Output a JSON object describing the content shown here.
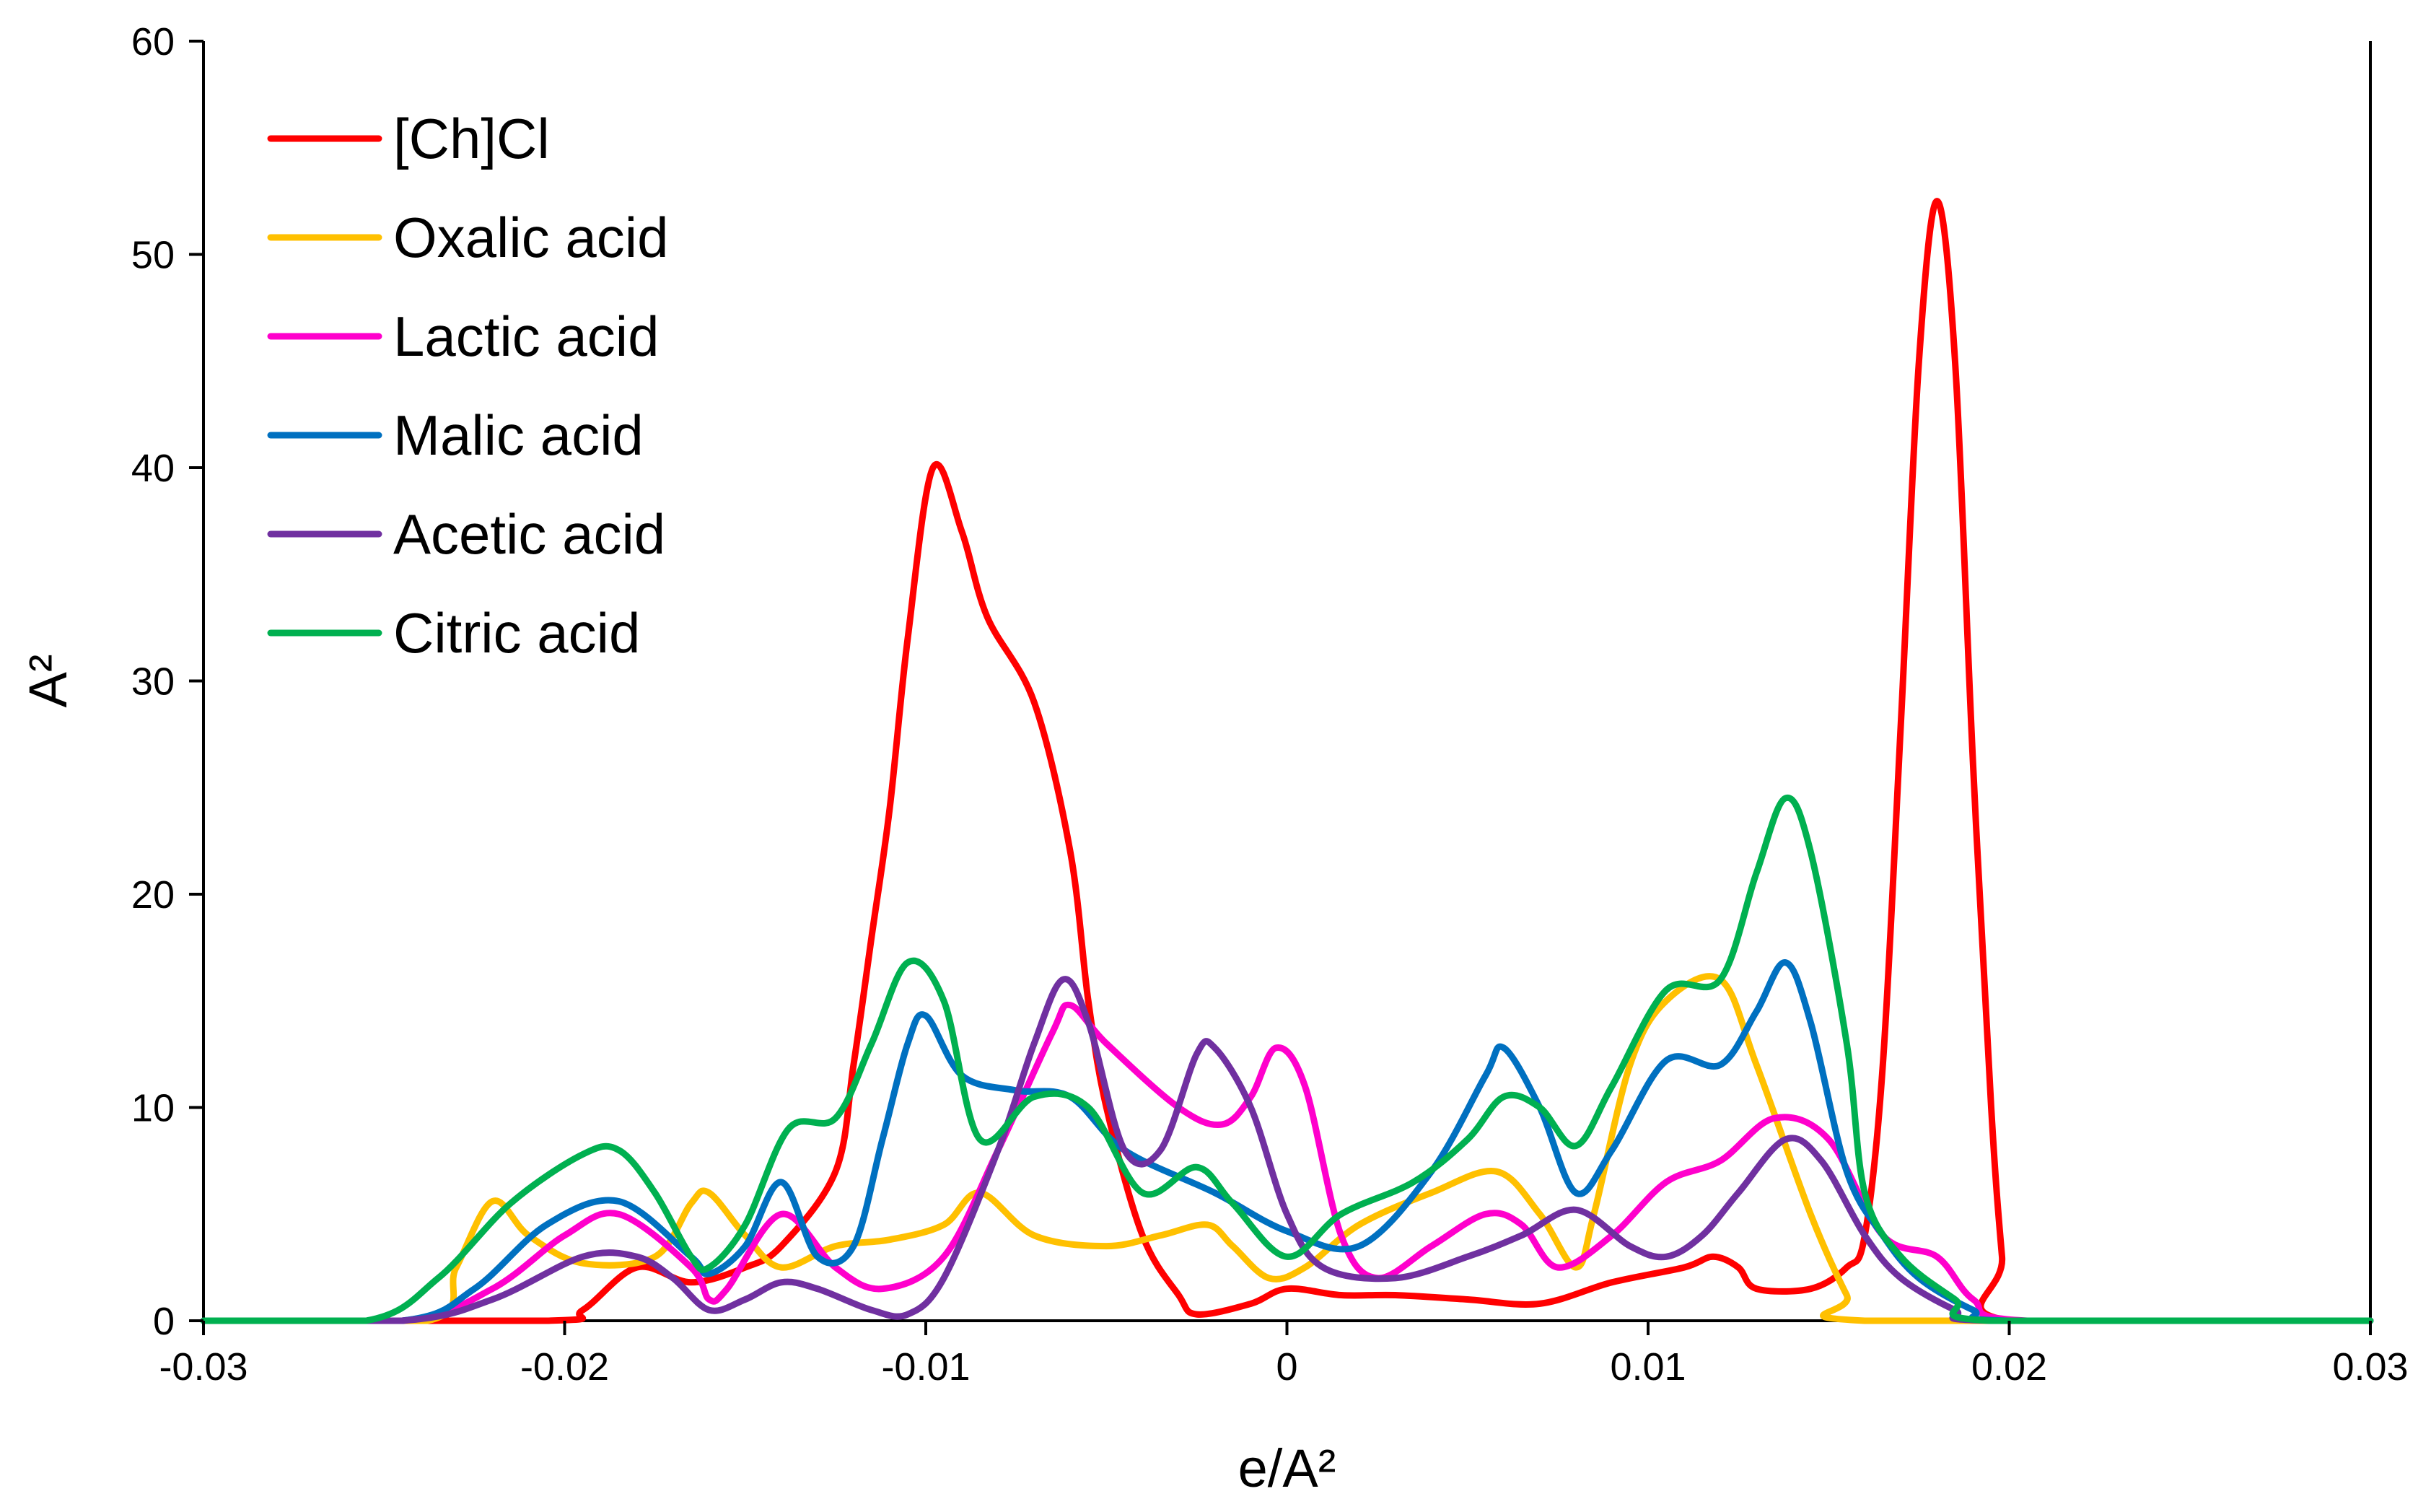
{
  "chart_data": {
    "type": "line",
    "title": "",
    "xlabel": "e/A²",
    "ylabel": "A²",
    "xlim": [
      -0.03,
      0.03
    ],
    "ylim": [
      0,
      60
    ],
    "x_ticks": [
      -0.03,
      -0.02,
      -0.01,
      0,
      0.01,
      0.02,
      0.03
    ],
    "x_tick_labels": [
      "-0.03",
      "-0.02",
      "-0.01",
      "0",
      "0.01",
      "0.02",
      "0.03"
    ],
    "y_ticks": [
      0,
      10,
      20,
      30,
      40,
      50,
      60
    ],
    "y_tick_labels": [
      "0",
      "10",
      "20",
      "30",
      "40",
      "50",
      "60"
    ],
    "grid": false,
    "legend_position": "top-left",
    "series": [
      {
        "name": "[Ch]Cl",
        "color": "#ff0000",
        "points": [
          [
            -0.03,
            0
          ],
          [
            -0.0205,
            0
          ],
          [
            -0.0195,
            0.5
          ],
          [
            -0.018,
            2.5
          ],
          [
            -0.0165,
            1.8
          ],
          [
            -0.015,
            2.5
          ],
          [
            -0.014,
            3.5
          ],
          [
            -0.0125,
            7
          ],
          [
            -0.012,
            12
          ],
          [
            -0.0115,
            18
          ],
          [
            -0.011,
            24
          ],
          [
            -0.0105,
            32
          ],
          [
            -0.0098,
            40
          ],
          [
            -0.009,
            37
          ],
          [
            -0.0083,
            33
          ],
          [
            -0.007,
            29
          ],
          [
            -0.006,
            22
          ],
          [
            -0.0055,
            15
          ],
          [
            -0.005,
            10
          ],
          [
            -0.004,
            4
          ],
          [
            -0.003,
            1.2
          ],
          [
            -0.0025,
            0.3
          ],
          [
            -0.001,
            0.8
          ],
          [
            0,
            1.5
          ],
          [
            0.0015,
            1.2
          ],
          [
            0.003,
            1.2
          ],
          [
            0.005,
            1
          ],
          [
            0.007,
            0.8
          ],
          [
            0.009,
            1.8
          ],
          [
            0.011,
            2.5
          ],
          [
            0.0118,
            3
          ],
          [
            0.0125,
            2.5
          ],
          [
            0.013,
            1.5
          ],
          [
            0.0145,
            1.5
          ],
          [
            0.0155,
            2.5
          ],
          [
            0.016,
            4
          ],
          [
            0.0165,
            12
          ],
          [
            0.017,
            28
          ],
          [
            0.0175,
            45
          ],
          [
            0.018,
            52.5
          ],
          [
            0.0185,
            45
          ],
          [
            0.019,
            26
          ],
          [
            0.0195,
            10
          ],
          [
            0.0198,
            3
          ],
          [
            0.02,
            0
          ],
          [
            0.03,
            0
          ]
        ]
      },
      {
        "name": "Oxalic  acid",
        "color": "#ffc000",
        "points": [
          [
            -0.03,
            0
          ],
          [
            -0.0238,
            0
          ],
          [
            -0.023,
            2.5
          ],
          [
            -0.022,
            5.6
          ],
          [
            -0.021,
            4
          ],
          [
            -0.0195,
            2.7
          ],
          [
            -0.0175,
            3
          ],
          [
            -0.0165,
            5.5
          ],
          [
            -0.016,
            6
          ],
          [
            -0.015,
            4
          ],
          [
            -0.014,
            2.5
          ],
          [
            -0.0125,
            3.5
          ],
          [
            -0.011,
            3.8
          ],
          [
            -0.0095,
            4.5
          ],
          [
            -0.0085,
            6
          ],
          [
            -0.007,
            4
          ],
          [
            -0.005,
            3.5
          ],
          [
            -0.0035,
            4
          ],
          [
            -0.0022,
            4.5
          ],
          [
            -0.0015,
            3.5
          ],
          [
            -0.0005,
            2
          ],
          [
            0.0005,
            2.5
          ],
          [
            0.002,
            4.5
          ],
          [
            0.004,
            6
          ],
          [
            0.0058,
            7
          ],
          [
            0.007,
            5
          ],
          [
            0.008,
            2.5
          ],
          [
            0.0085,
            5
          ],
          [
            0.0095,
            12
          ],
          [
            0.0105,
            15
          ],
          [
            0.012,
            16
          ],
          [
            0.013,
            12
          ],
          [
            0.0145,
            5
          ],
          [
            0.0155,
            1.2
          ],
          [
            0.016,
            0
          ],
          [
            0.03,
            0
          ]
        ]
      },
      {
        "name": "Lactic acid",
        "color": "#ff00cc",
        "points": [
          [
            -0.03,
            0
          ],
          [
            -0.0245,
            0
          ],
          [
            -0.022,
            1.5
          ],
          [
            -0.02,
            4
          ],
          [
            -0.0185,
            5
          ],
          [
            -0.0165,
            2.5
          ],
          [
            -0.016,
            1
          ],
          [
            -0.0155,
            1.5
          ],
          [
            -0.014,
            5
          ],
          [
            -0.0125,
            2.5
          ],
          [
            -0.0112,
            1.5
          ],
          [
            -0.0095,
            3
          ],
          [
            -0.008,
            8
          ],
          [
            -0.0065,
            13.5
          ],
          [
            -0.006,
            14.8
          ],
          [
            -0.005,
            13
          ],
          [
            -0.003,
            10
          ],
          [
            -0.0018,
            9.2
          ],
          [
            -0.001,
            10.5
          ],
          [
            -0.0003,
            12.8
          ],
          [
            0.0005,
            11
          ],
          [
            0.0015,
            4
          ],
          [
            0.0025,
            2
          ],
          [
            0.004,
            3.5
          ],
          [
            0.0055,
            5
          ],
          [
            0.0065,
            4.5
          ],
          [
            0.0075,
            2.5
          ],
          [
            0.009,
            4
          ],
          [
            0.0105,
            6.5
          ],
          [
            0.012,
            7.5
          ],
          [
            0.0135,
            9.5
          ],
          [
            0.015,
            8.5
          ],
          [
            0.0165,
            4
          ],
          [
            0.018,
            3
          ],
          [
            0.019,
            1
          ],
          [
            0.0205,
            0
          ],
          [
            0.03,
            0
          ]
        ]
      },
      {
        "name": "Malic acid",
        "color": "#0070c0",
        "points": [
          [
            -0.03,
            0
          ],
          [
            -0.0245,
            0
          ],
          [
            -0.0225,
            1.5
          ],
          [
            -0.0205,
            4.5
          ],
          [
            -0.0185,
            5.6
          ],
          [
            -0.0165,
            3
          ],
          [
            -0.016,
            2.2
          ],
          [
            -0.015,
            3.5
          ],
          [
            -0.014,
            6.5
          ],
          [
            -0.013,
            3
          ],
          [
            -0.012,
            3.5
          ],
          [
            -0.0112,
            8.5
          ],
          [
            -0.0105,
            13
          ],
          [
            -0.01,
            14.3
          ],
          [
            -0.009,
            11.5
          ],
          [
            -0.0075,
            10.8
          ],
          [
            -0.006,
            10.5
          ],
          [
            -0.0045,
            8
          ],
          [
            -0.002,
            6
          ],
          [
            0,
            4.2
          ],
          [
            0.002,
            3.5
          ],
          [
            0.004,
            7
          ],
          [
            0.0055,
            11.5
          ],
          [
            0.006,
            12.8
          ],
          [
            0.007,
            10
          ],
          [
            0.008,
            6
          ],
          [
            0.009,
            8
          ],
          [
            0.0105,
            12.2
          ],
          [
            0.012,
            12
          ],
          [
            0.013,
            14.5
          ],
          [
            0.0138,
            16.8
          ],
          [
            0.0145,
            14
          ],
          [
            0.0155,
            7
          ],
          [
            0.0165,
            4
          ],
          [
            0.0175,
            2
          ],
          [
            0.019,
            0.5
          ],
          [
            0.02,
            0
          ],
          [
            0.03,
            0
          ]
        ]
      },
      {
        "name": "Acetic acid",
        "color": "#7030a0",
        "points": [
          [
            -0.03,
            0
          ],
          [
            -0.0245,
            0
          ],
          [
            -0.022,
            1
          ],
          [
            -0.0195,
            3
          ],
          [
            -0.018,
            3
          ],
          [
            -0.017,
            2
          ],
          [
            -0.016,
            0.5
          ],
          [
            -0.015,
            1
          ],
          [
            -0.014,
            1.8
          ],
          [
            -0.013,
            1.5
          ],
          [
            -0.0115,
            0.5
          ],
          [
            -0.0105,
            0.3
          ],
          [
            -0.0095,
            2
          ],
          [
            -0.008,
            8
          ],
          [
            -0.007,
            13
          ],
          [
            -0.0062,
            16
          ],
          [
            -0.0055,
            14
          ],
          [
            -0.0045,
            8
          ],
          [
            -0.0035,
            8
          ],
          [
            -0.0025,
            12.5
          ],
          [
            -0.002,
            12.8
          ],
          [
            -0.001,
            10
          ],
          [
            0,
            5
          ],
          [
            0.001,
            2.5
          ],
          [
            0.003,
            2
          ],
          [
            0.005,
            3
          ],
          [
            0.0065,
            4
          ],
          [
            0.008,
            5.2
          ],
          [
            0.0095,
            3.5
          ],
          [
            0.0105,
            3
          ],
          [
            0.0115,
            4
          ],
          [
            0.0125,
            6
          ],
          [
            0.0138,
            8.5
          ],
          [
            0.0148,
            7.5
          ],
          [
            0.016,
            4
          ],
          [
            0.017,
            2
          ],
          [
            0.0185,
            0.5
          ],
          [
            0.0195,
            0
          ],
          [
            0.03,
            0
          ]
        ]
      },
      {
        "name": "Citric acid",
        "color": "#00b050",
        "points": [
          [
            -0.03,
            0
          ],
          [
            -0.0255,
            0
          ],
          [
            -0.0235,
            2
          ],
          [
            -0.0215,
            5.5
          ],
          [
            -0.0195,
            7.8
          ],
          [
            -0.0185,
            8
          ],
          [
            -0.0175,
            6
          ],
          [
            -0.0165,
            3
          ],
          [
            -0.016,
            2.5
          ],
          [
            -0.015,
            4.5
          ],
          [
            -0.0138,
            9
          ],
          [
            -0.0125,
            9.5
          ],
          [
            -0.0115,
            13
          ],
          [
            -0.0105,
            16.8
          ],
          [
            -0.0095,
            15
          ],
          [
            -0.0085,
            8.5
          ],
          [
            -0.007,
            10.5
          ],
          [
            -0.0055,
            10
          ],
          [
            -0.004,
            6
          ],
          [
            -0.0025,
            7.2
          ],
          [
            -0.0015,
            5.5
          ],
          [
            0,
            3
          ],
          [
            0.0015,
            5
          ],
          [
            0.0035,
            6.5
          ],
          [
            0.005,
            8.5
          ],
          [
            0.006,
            10.5
          ],
          [
            0.007,
            10
          ],
          [
            0.008,
            8.2
          ],
          [
            0.009,
            11
          ],
          [
            0.0105,
            15.5
          ],
          [
            0.012,
            16
          ],
          [
            0.013,
            21
          ],
          [
            0.0138,
            24.5
          ],
          [
            0.0145,
            22
          ],
          [
            0.0155,
            13
          ],
          [
            0.016,
            6
          ],
          [
            0.017,
            3
          ],
          [
            0.0185,
            1
          ],
          [
            0.0195,
            0
          ],
          [
            0.03,
            0
          ]
        ]
      }
    ]
  }
}
